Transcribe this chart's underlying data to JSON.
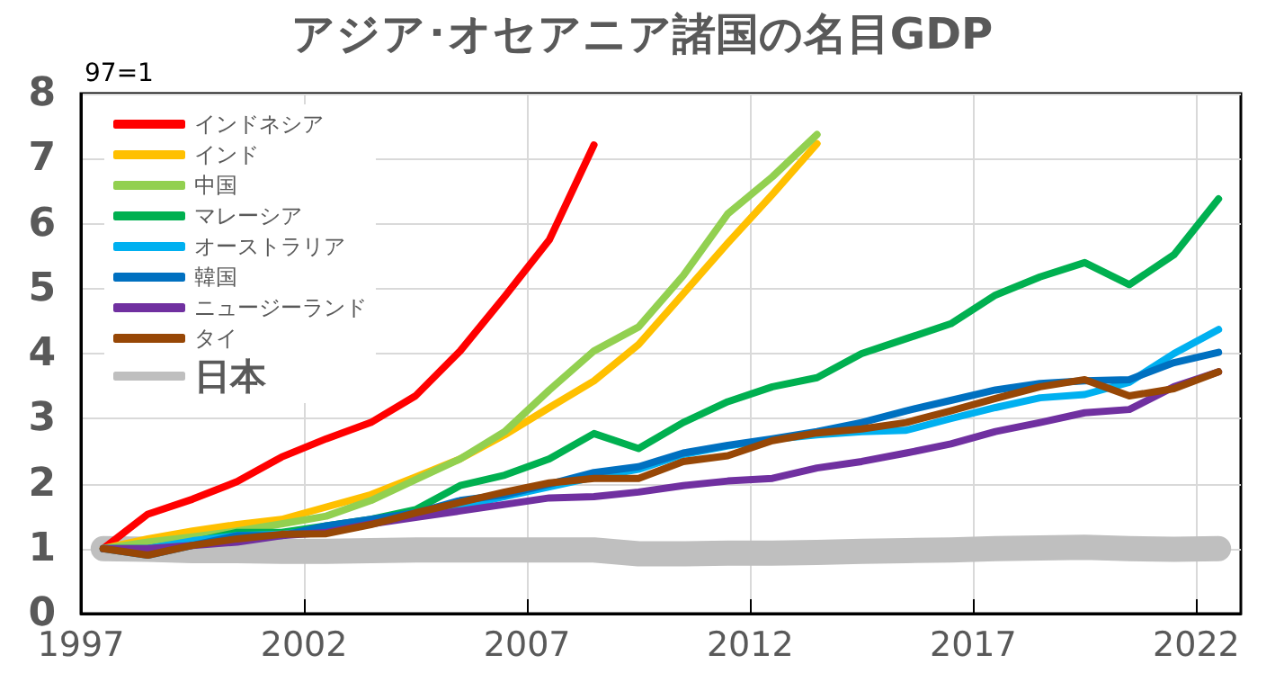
{
  "chart_data": {
    "type": "line",
    "title": "アジア･オセアニア諸国の名目GDP",
    "ylabel": "97=1",
    "x": [
      1997,
      1998,
      1999,
      2000,
      2001,
      2002,
      2003,
      2004,
      2005,
      2006,
      2007,
      2008,
      2009,
      2010,
      2011,
      2012,
      2013,
      2014,
      2015,
      2016,
      2017,
      2018,
      2019,
      2020,
      2021,
      2022
    ],
    "xlim": [
      1996.5,
      2022.5
    ],
    "xticks": [
      {
        "value": 1996.5,
        "label": "1997"
      },
      {
        "value": 2001.5,
        "label": "2002"
      },
      {
        "value": 2006.5,
        "label": "2007"
      },
      {
        "value": 2011.5,
        "label": "2012"
      },
      {
        "value": 2016.5,
        "label": "2017"
      },
      {
        "value": 2021.5,
        "label": "2022"
      }
    ],
    "ylim": [
      0,
      8
    ],
    "yticks": [
      0,
      1,
      2,
      3,
      4,
      5,
      6,
      7,
      8
    ],
    "grid": true,
    "legend": "top left",
    "marker": "none",
    "line_style": "solid",
    "series": [
      {
        "name": "インドネシア",
        "color": "#ff0000",
        "values": [
          1,
          1.53,
          1.76,
          2.03,
          2.41,
          2.69,
          2.94,
          3.35,
          4.04,
          4.88,
          5.75,
          7.21,
          null,
          null,
          null,
          null,
          null,
          null,
          null,
          null,
          null,
          null,
          null,
          null,
          null,
          null
        ]
      },
      {
        "name": "インド",
        "color": "#ffc000",
        "values": [
          1,
          1.15,
          1.27,
          1.37,
          1.45,
          1.64,
          1.83,
          2.1,
          2.38,
          2.75,
          3.17,
          3.58,
          4.14,
          4.92,
          5.7,
          6.45,
          7.23,
          null,
          null,
          null,
          null,
          null,
          null,
          null,
          null,
          null
        ]
      },
      {
        "name": "中国",
        "color": "#92d050",
        "values": [
          1,
          1.1,
          1.18,
          1.27,
          1.38,
          1.5,
          1.74,
          2.06,
          2.38,
          2.8,
          3.44,
          4.04,
          4.41,
          5.2,
          6.15,
          6.72,
          7.37,
          null,
          null,
          null,
          null,
          null,
          null,
          null,
          null,
          null
        ]
      },
      {
        "name": "マレーシア",
        "color": "#00b050",
        "values": [
          1,
          1.0,
          1.1,
          1.25,
          1.25,
          1.35,
          1.45,
          1.6,
          1.97,
          2.13,
          2.38,
          2.77,
          2.54,
          2.94,
          3.26,
          3.49,
          3.63,
          4.0,
          4.23,
          4.46,
          4.9,
          5.18,
          5.4,
          5.06,
          5.52,
          6.38
        ]
      },
      {
        "name": "オーストラリア",
        "color": "#00b0f0",
        "values": [
          1,
          1.0,
          1.12,
          1.2,
          1.22,
          1.3,
          1.42,
          1.55,
          1.65,
          1.8,
          1.95,
          2.1,
          2.22,
          2.45,
          2.58,
          2.68,
          2.75,
          2.8,
          2.82,
          3.0,
          3.17,
          3.32,
          3.37,
          3.56,
          4.0,
          4.37
        ]
      },
      {
        "name": "韓国",
        "color": "#0070c0",
        "values": [
          1,
          0.9,
          1.05,
          1.2,
          1.2,
          1.35,
          1.45,
          1.55,
          1.74,
          1.83,
          1.99,
          2.17,
          2.26,
          2.47,
          2.59,
          2.69,
          2.8,
          2.94,
          3.12,
          3.28,
          3.44,
          3.54,
          3.58,
          3.6,
          3.86,
          4.02
        ]
      },
      {
        "name": "ニュージーランド",
        "color": "#7030a0",
        "values": [
          1,
          1.0,
          1.05,
          1.1,
          1.2,
          1.25,
          1.38,
          1.48,
          1.58,
          1.68,
          1.78,
          1.8,
          1.87,
          1.97,
          2.04,
          2.08,
          2.24,
          2.34,
          2.47,
          2.61,
          2.8,
          2.94,
          3.09,
          3.14,
          3.49,
          3.72
        ]
      },
      {
        "name": "タイ",
        "color": "#974706",
        "values": [
          1,
          0.9,
          1.05,
          1.15,
          1.22,
          1.23,
          1.37,
          1.55,
          1.71,
          1.87,
          2.01,
          2.08,
          2.08,
          2.34,
          2.43,
          2.66,
          2.78,
          2.84,
          2.94,
          3.12,
          3.31,
          3.49,
          3.6,
          3.35,
          3.46,
          3.72
        ]
      },
      {
        "name": "日本",
        "color": "#bfbfbf",
        "values": [
          1,
          0.99,
          0.97,
          0.97,
          0.96,
          0.96,
          0.97,
          0.98,
          0.98,
          0.98,
          0.98,
          0.98,
          0.92,
          0.92,
          0.93,
          0.93,
          0.94,
          0.96,
          0.97,
          0.98,
          1.0,
          1.01,
          1.02,
          1.0,
          0.99,
          1.0
        ]
      }
    ]
  }
}
